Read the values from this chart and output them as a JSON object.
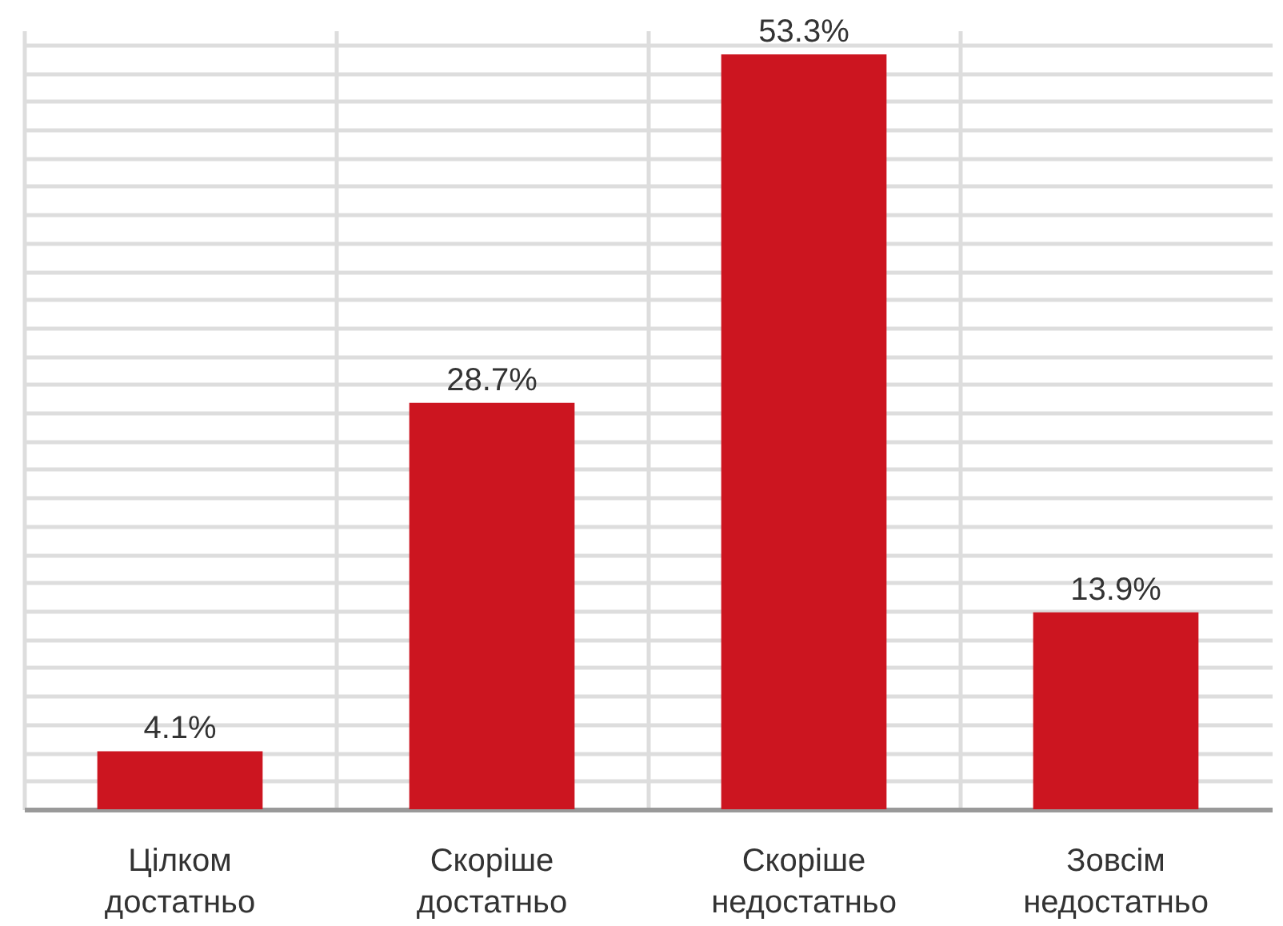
{
  "chart_data": {
    "type": "bar",
    "categories": [
      "Цілком достатньо",
      "Скоріше достатньо",
      "Скоріше недостатньо",
      "Зовсім недостатньо"
    ],
    "values": [
      4.1,
      28.7,
      53.3,
      13.9
    ],
    "color": "#cc1520",
    "data_labels": true,
    "value_labels": [
      "4.1%",
      "28.7%",
      "53.3%",
      "13.9%"
    ],
    "grid": true,
    "tick_labels": "x"
  }
}
